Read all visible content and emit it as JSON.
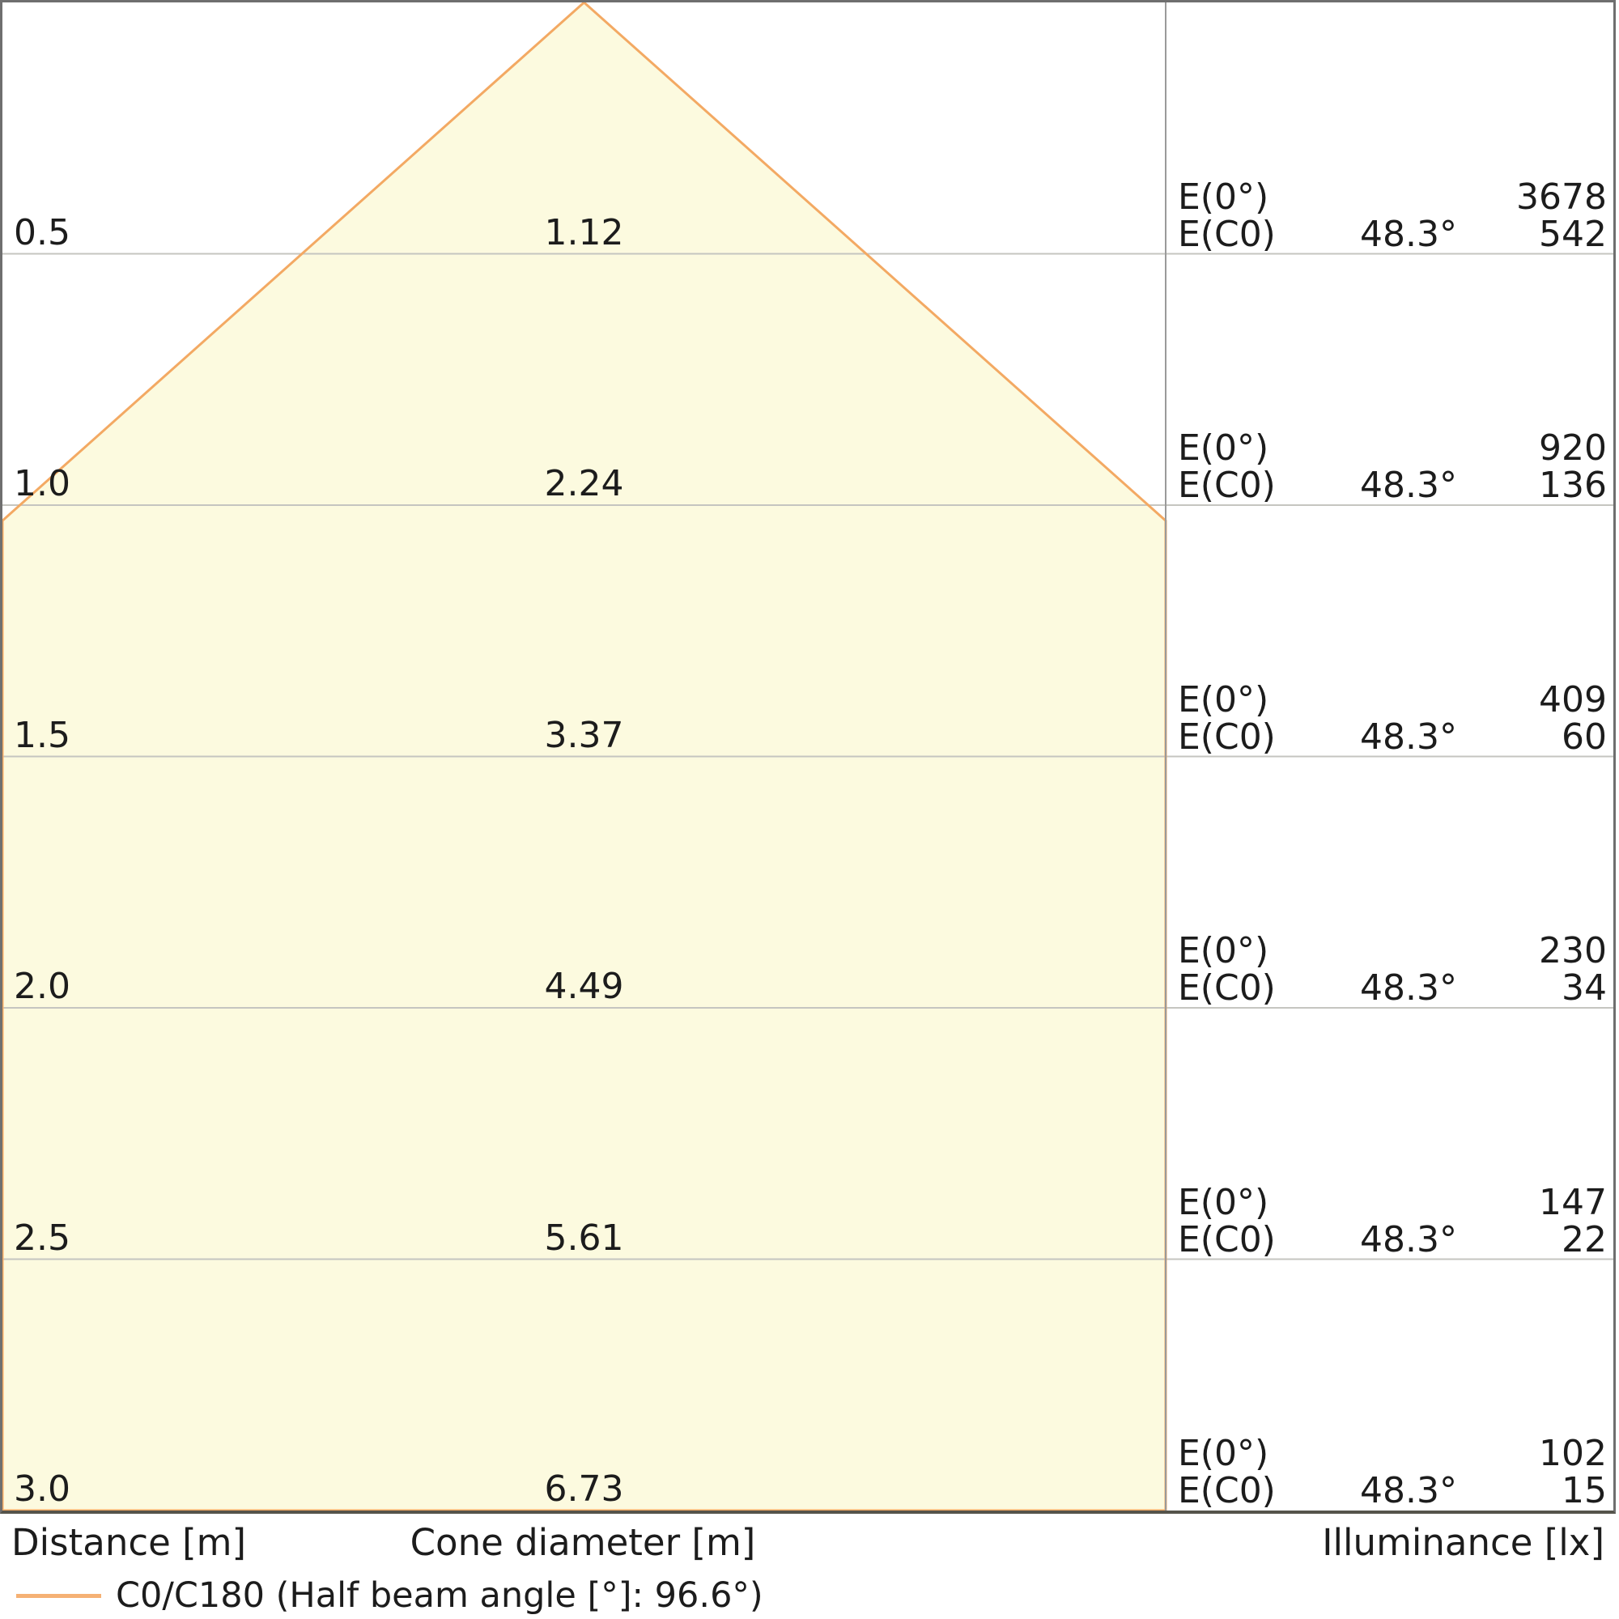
{
  "colors": {
    "cone_fill": "#FCFADF",
    "cone_outline": "#F3A963",
    "legend_swatch": "#F5B174",
    "gridline": "#C5C5C0",
    "divider": "#9A9A9A",
    "border": "#6F6F6F",
    "text": "#1C1C1C"
  },
  "chart_data": {
    "type": "area",
    "subtype": "luminaire-light-cone-diagram",
    "distance_axis_label": "Distance [m]",
    "cone_diameter_axis_label": "Cone diameter [m]",
    "illuminance_axis_label": "Illuminance [lx]",
    "legend": "C0/C180 (Half beam angle [°]: 96.6°)",
    "legend_position": "bottom-left",
    "grid": true,
    "axis_range_m": [
      0,
      3.0
    ],
    "half_beam_angle_deg": 48.3,
    "distances_m": [
      0.5,
      1.0,
      1.5,
      2.0,
      2.5,
      3.0
    ],
    "cone_diameters_m": [
      1.12,
      2.24,
      3.37,
      4.49,
      5.61,
      6.73
    ],
    "e0_values_lx": [
      3678,
      920,
      409,
      230,
      147,
      102
    ],
    "ec0_values_lx": [
      542,
      136,
      60,
      34,
      22,
      15
    ],
    "rows": [
      {
        "distance": "0.5",
        "cone_diameter": "1.12",
        "e0_label": "E(0°)",
        "ec0_label": "E(C0)",
        "angle": "48.3°",
        "e0_lx": "3678",
        "ec0_lx": "542"
      },
      {
        "distance": "1.0",
        "cone_diameter": "2.24",
        "e0_label": "E(0°)",
        "ec0_label": "E(C0)",
        "angle": "48.3°",
        "e0_lx": "920",
        "ec0_lx": "136"
      },
      {
        "distance": "1.5",
        "cone_diameter": "3.37",
        "e0_label": "E(0°)",
        "ec0_label": "E(C0)",
        "angle": "48.3°",
        "e0_lx": "409",
        "ec0_lx": "60"
      },
      {
        "distance": "2.0",
        "cone_diameter": "4.49",
        "e0_label": "E(0°)",
        "ec0_label": "E(C0)",
        "angle": "48.3°",
        "e0_lx": "230",
        "ec0_lx": "34"
      },
      {
        "distance": "2.5",
        "cone_diameter": "5.61",
        "e0_label": "E(0°)",
        "ec0_label": "E(C0)",
        "angle": "48.3°",
        "e0_lx": "147",
        "ec0_lx": "22"
      },
      {
        "distance": "3.0",
        "cone_diameter": "6.73",
        "e0_label": "E(0°)",
        "ec0_label": "E(C0)",
        "angle": "48.3°",
        "e0_lx": "102",
        "ec0_lx": "15"
      }
    ]
  }
}
